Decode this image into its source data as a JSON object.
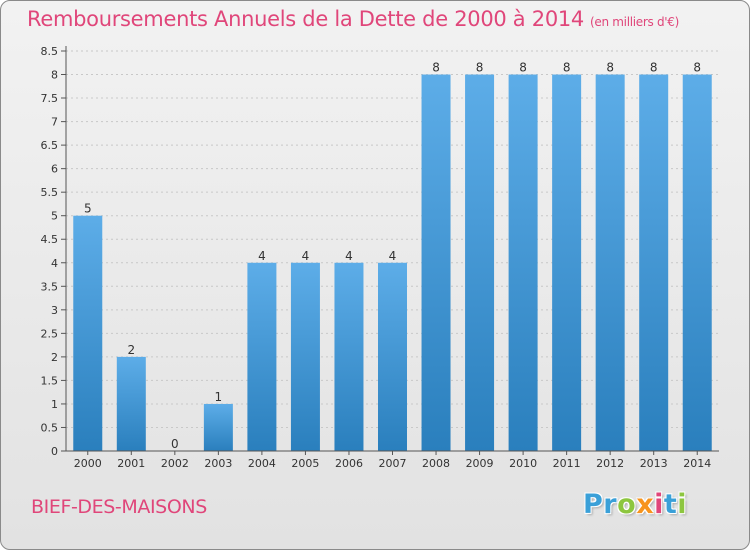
{
  "title": "Remboursements Annuels de la Dette de 2000 à 2014",
  "title_unit": "(en milliers d'€)",
  "town": "BIEF-DES-MAISONS",
  "logo_letters": [
    {
      "ch": "P",
      "color": "#3aa0d8"
    },
    {
      "ch": "r",
      "color": "#3aa0d8"
    },
    {
      "ch": "o",
      "color": "#8dc63f"
    },
    {
      "ch": "x",
      "color": "#f7941d"
    },
    {
      "ch": "i",
      "color": "#e0467a"
    },
    {
      "ch": "t",
      "color": "#3aa0d8"
    },
    {
      "ch": "i",
      "color": "#8dc63f"
    }
  ],
  "colors": {
    "bar_light": "#5dade8",
    "bar_dark": "#2a7fbd",
    "grid": "#c8c8c8",
    "title": "#e0467a"
  },
  "chart_data": {
    "type": "bar",
    "title": "Remboursements Annuels de la Dette de 2000 à 2014",
    "categories": [
      "2000",
      "2001",
      "2002",
      "2003",
      "2004",
      "2005",
      "2006",
      "2007",
      "2008",
      "2009",
      "2010",
      "2011",
      "2012",
      "2013",
      "2014"
    ],
    "values": [
      5,
      2,
      0,
      1,
      4,
      4,
      4,
      4,
      8,
      8,
      8,
      8,
      8,
      8,
      8
    ],
    "ylim": [
      0,
      8.5
    ],
    "yticks": [
      "0",
      "0.5",
      "1",
      "1.5",
      "2",
      "2.5",
      "3",
      "3.5",
      "4",
      "4.5",
      "5",
      "5.5",
      "6",
      "6.5",
      "7",
      "7.5",
      "8",
      "8.5"
    ],
    "ytick_values": [
      0,
      0.5,
      1,
      1.5,
      2,
      2.5,
      3,
      3.5,
      4,
      4.5,
      5,
      5.5,
      6,
      6.5,
      7,
      7.5,
      8,
      8.5
    ],
    "grid": true,
    "xlabel": "",
    "ylabel": ""
  }
}
